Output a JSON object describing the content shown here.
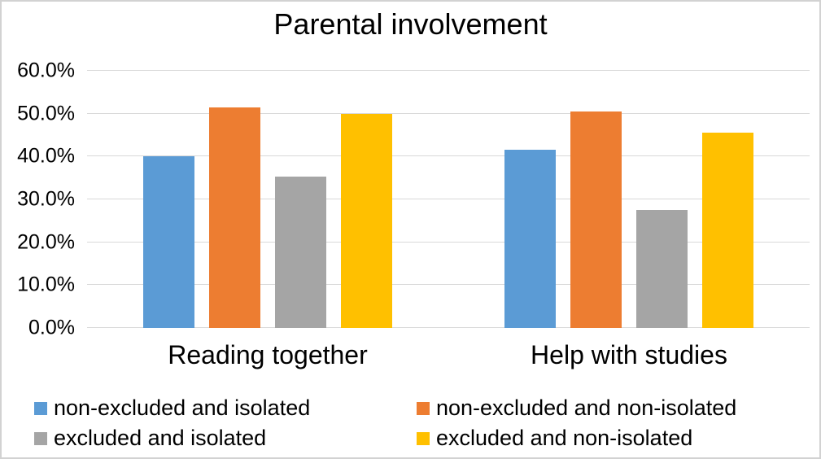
{
  "chart_data": {
    "type": "bar",
    "title": "Parental involvement",
    "categories": [
      "Reading together",
      "Help with studies"
    ],
    "series": [
      {
        "name": "non-excluded and isolated",
        "color": "#5B9BD5",
        "values": [
          40.0,
          41.5
        ]
      },
      {
        "name": "non-excluded and non-isolated",
        "color": "#ED7D31",
        "values": [
          51.5,
          50.6
        ]
      },
      {
        "name": "excluded and isolated",
        "color": "#A5A5A5",
        "values": [
          35.4,
          27.5
        ]
      },
      {
        "name": "excluded and non-isolated",
        "color": "#FFC000",
        "values": [
          50.0,
          45.5
        ]
      }
    ],
    "ylim": [
      0,
      60
    ],
    "yticks": [
      {
        "label": "60.0%",
        "value": 60
      },
      {
        "label": "50.0%",
        "value": 50
      },
      {
        "label": "40.0%",
        "value": 40
      },
      {
        "label": "30.0%",
        "value": 30
      },
      {
        "label": "20.0%",
        "value": 20
      },
      {
        "label": "10.0%",
        "value": 10
      },
      {
        "label": "0.0%",
        "value": 0
      }
    ],
    "xlabel": "",
    "ylabel": "",
    "grid": true,
    "grid_color": "#D9D9D9",
    "legend_position": "bottom"
  }
}
